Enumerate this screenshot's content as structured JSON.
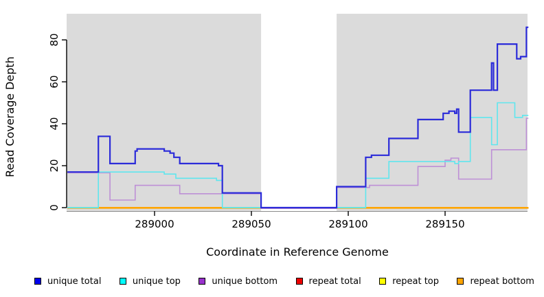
{
  "chart_data": {
    "type": "line",
    "subtype": "step-coverage",
    "title": "",
    "xlabel": "Coordinate in Reference Genome",
    "ylabel": "Read Coverage Depth",
    "x_ticks": [
      289000,
      289050,
      289100,
      289150
    ],
    "y_ticks": [
      0,
      20,
      40,
      60,
      80
    ],
    "xlim": [
      288955,
      289193
    ],
    "ylim": [
      0,
      92
    ],
    "grid": false,
    "plot_bg_color": "#DBDBDB",
    "gap_region": {
      "x_start": 289055,
      "x_end": 289094,
      "note": "white masked column, coverage drops to 0"
    },
    "series": [
      {
        "name": "unique total",
        "color": "#2B2BD9",
        "end": 289193,
        "steps": [
          [
            288955,
            17
          ],
          [
            288971,
            34
          ],
          [
            288977,
            21
          ],
          [
            288990,
            27
          ],
          [
            288991,
            28
          ],
          [
            289005,
            27
          ],
          [
            289008,
            26
          ],
          [
            289010,
            24
          ],
          [
            289013,
            21
          ],
          [
            289033,
            20
          ],
          [
            289035,
            7
          ],
          [
            289055,
            0
          ],
          [
            289094,
            10
          ],
          [
            289109,
            24
          ],
          [
            289112,
            25
          ],
          [
            289121,
            33
          ],
          [
            289136,
            42
          ],
          [
            289149,
            45
          ],
          [
            289152,
            46
          ],
          [
            289155,
            45
          ],
          [
            289156,
            47
          ],
          [
            289157,
            36
          ],
          [
            289163,
            56
          ],
          [
            289174,
            69
          ],
          [
            289175,
            56
          ],
          [
            289177,
            78
          ],
          [
            289187,
            71
          ],
          [
            289189,
            72
          ],
          [
            289192,
            86
          ]
        ]
      },
      {
        "name": "unique top",
        "color": "#5FE6EE",
        "end": 289193,
        "steps": [
          [
            288955,
            0
          ],
          [
            288971,
            17
          ],
          [
            289005,
            16
          ],
          [
            289011,
            14
          ],
          [
            289032,
            13
          ],
          [
            289035,
            0
          ],
          [
            289109,
            14
          ],
          [
            289121,
            22
          ],
          [
            289155,
            21
          ],
          [
            289157,
            22
          ],
          [
            289163,
            43
          ],
          [
            289174,
            30
          ],
          [
            289177,
            50
          ],
          [
            289186,
            43
          ],
          [
            289190,
            44
          ]
        ]
      },
      {
        "name": "unique bottom",
        "color": "#BD8FD6",
        "end": 289193,
        "steps": [
          [
            288955,
            17
          ],
          [
            288977,
            4
          ],
          [
            288990,
            11
          ],
          [
            289013,
            7
          ],
          [
            289055,
            0
          ],
          [
            289094,
            10
          ],
          [
            289111,
            11
          ],
          [
            289136,
            20
          ],
          [
            289150,
            23
          ],
          [
            289153,
            24
          ],
          [
            289157,
            14
          ],
          [
            289174,
            28
          ],
          [
            289192,
            43
          ]
        ]
      },
      {
        "name": "repeat total",
        "color": "#EE0000",
        "end": 289193,
        "steps": [
          [
            288955,
            0
          ]
        ]
      },
      {
        "name": "repeat top",
        "color": "#FFFF00",
        "end": 289193,
        "steps": [
          [
            288955,
            0
          ]
        ]
      },
      {
        "name": "repeat bottom",
        "color": "#FFA500",
        "end": 289193,
        "steps": [
          [
            288955,
            0
          ]
        ]
      }
    ],
    "baseline_segments": [
      {
        "color": "#8FD9A8",
        "from": 288955,
        "to": 288971
      },
      {
        "color": "#FFA500",
        "from": 288971,
        "to": 289035
      },
      {
        "color": "#8FD9A8",
        "from": 289035,
        "to": 289055
      },
      {
        "color": "#8FD9A8",
        "from": 289094,
        "to": 289109
      },
      {
        "color": "#FFA500",
        "from": 289109,
        "to": 289193
      }
    ],
    "legend": [
      {
        "label": "unique total",
        "color": "#0000EE"
      },
      {
        "label": "unique top",
        "color": "#00FFFF"
      },
      {
        "label": "unique bottom",
        "color": "#9932CC"
      },
      {
        "label": "repeat total",
        "color": "#EE0000"
      },
      {
        "label": "repeat top",
        "color": "#FFFF00"
      },
      {
        "label": "repeat bottom",
        "color": "#FFA500"
      }
    ]
  }
}
